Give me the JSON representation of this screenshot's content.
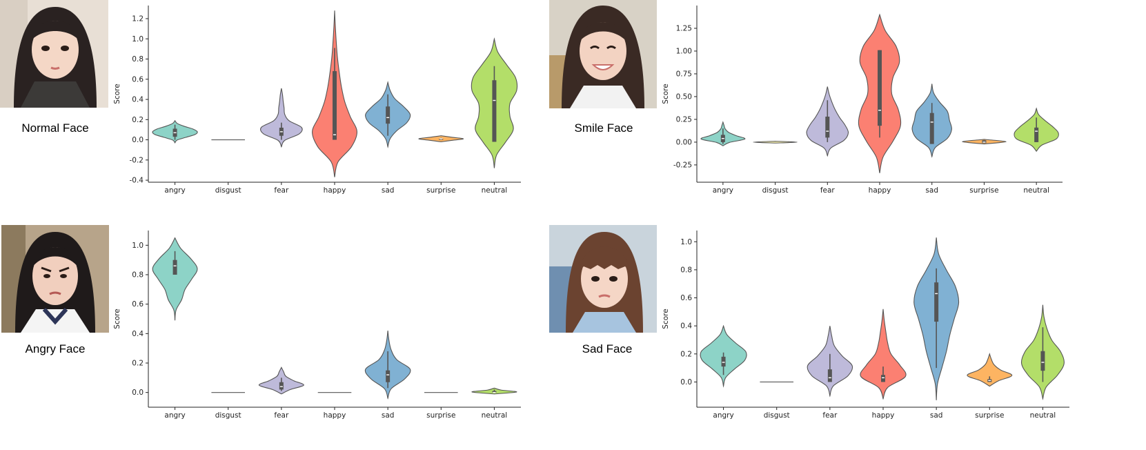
{
  "panels": [
    {
      "caption": "Normal Face"
    },
    {
      "caption": "Smile Face"
    },
    {
      "caption": "Angry Face"
    },
    {
      "caption": "Sad Face"
    }
  ],
  "colors": {
    "angry": "#8dd3c7",
    "disgust": "#fdf6b2",
    "fear": "#bebada",
    "happy": "#fb8072",
    "sad": "#80b1d3",
    "surprise": "#fdb462",
    "neutral": "#b3de69",
    "outline": "#555555",
    "box": "#555555"
  },
  "chart_data": [
    {
      "type": "violin",
      "categories": [
        "angry",
        "disgust",
        "fear",
        "happy",
        "sad",
        "surprise",
        "neutral"
      ],
      "ylabel": "Score",
      "ylim": [
        -0.42,
        1.33
      ],
      "yticks": [
        "-0.4",
        "-0.2",
        "0.0",
        "0.2",
        "0.4",
        "0.6",
        "0.8",
        "1.0",
        "1.2"
      ],
      "ytick_values": [
        -0.4,
        -0.2,
        0.0,
        0.2,
        0.4,
        0.6,
        0.8,
        1.0,
        1.2
      ],
      "violins": [
        {
          "lo": -0.03,
          "hi": 0.19,
          "w": [
            0.1,
            0.5,
            0.9,
            1.0,
            0.8,
            0.4,
            0.1
          ],
          "q1": 0.03,
          "med": 0.07,
          "q3": 0.11,
          "wlo": 0.0,
          "whi": 0.15
        },
        {
          "lo": 0.0,
          "hi": 0.0,
          "w": [
            0
          ],
          "q1": 0,
          "med": 0,
          "q3": 0,
          "wlo": 0,
          "whi": 0
        },
        {
          "lo": -0.07,
          "hi": 0.51,
          "w": [
            0.15,
            0.8,
            0.9,
            0.35,
            0.15,
            0.12,
            0.08,
            0.05
          ],
          "q1": 0.04,
          "med": 0.08,
          "q3": 0.12,
          "wlo": 0.0,
          "whi": 0.17
        },
        {
          "lo": -0.37,
          "hi": 1.28,
          "w": [
            0.15,
            0.75,
            1.0,
            0.7,
            0.45,
            0.3,
            0.2,
            0.12,
            0.07,
            0.03
          ],
          "q1": 0.0,
          "med": 0.05,
          "q3": 0.68,
          "wlo": 0.0,
          "whi": 0.91
        },
        {
          "lo": -0.07,
          "hi": 0.57,
          "w": [
            0.1,
            0.4,
            0.85,
            1.0,
            0.7,
            0.3,
            0.1
          ],
          "q1": 0.16,
          "med": 0.22,
          "q3": 0.33,
          "wlo": 0.04,
          "whi": 0.45
        },
        {
          "lo": -0.02,
          "hi": 0.04,
          "w": [
            0.5,
            1.0,
            0.5
          ],
          "q1": 0.0,
          "med": 0.01,
          "q3": 0.01,
          "wlo": 0.0,
          "whi": 0.02
        },
        {
          "lo": -0.28,
          "hi": 1.0,
          "w": [
            0.1,
            0.5,
            0.85,
            0.7,
            0.7,
            1.0,
            0.95,
            0.55,
            0.15
          ],
          "q1": -0.02,
          "med": 0.39,
          "q3": 0.59,
          "wlo": -0.02,
          "whi": 0.73
        }
      ]
    },
    {
      "type": "violin",
      "categories": [
        "angry",
        "disgust",
        "fear",
        "happy",
        "sad",
        "surprise",
        "neutral"
      ],
      "ylabel": "Score",
      "ylim": [
        -0.44,
        1.5
      ],
      "yticks": [
        "-0.25",
        "0.00",
        "0.25",
        "0.50",
        "0.75",
        "1.00",
        "1.25"
      ],
      "ytick_values": [
        -0.25,
        0.0,
        0.25,
        0.5,
        0.75,
        1.0,
        1.25
      ],
      "violins": [
        {
          "lo": -0.04,
          "hi": 0.22,
          "w": [
            0.3,
            1.0,
            0.6,
            0.25,
            0.1,
            0.05
          ],
          "q1": 0.0,
          "med": 0.04,
          "q3": 0.08,
          "wlo": -0.02,
          "whi": 0.15
        },
        {
          "lo": -0.01,
          "hi": 0.01,
          "w": [
            1.0
          ],
          "q1": 0,
          "med": 0,
          "q3": 0,
          "wlo": 0,
          "whi": 0
        },
        {
          "lo": -0.15,
          "hi": 0.61,
          "w": [
            0.15,
            0.75,
            0.95,
            0.8,
            0.55,
            0.35,
            0.2,
            0.08
          ],
          "q1": 0.05,
          "med": 0.12,
          "q3": 0.28,
          "wlo": 0.0,
          "whi": 0.46
        },
        {
          "lo": -0.34,
          "hi": 1.4,
          "w": [
            0.15,
            0.6,
            0.95,
            0.85,
            0.55,
            0.6,
            0.9,
            0.75,
            0.25
          ],
          "q1": 0.18,
          "med": 0.35,
          "q3": 1.01,
          "wlo": 0.05,
          "whi": 1.01
        },
        {
          "lo": -0.16,
          "hi": 0.64,
          "w": [
            0.15,
            0.7,
            0.9,
            0.8,
            0.7,
            0.35,
            0.08
          ],
          "q1": -0.02,
          "med": 0.22,
          "q3": 0.32,
          "wlo": -0.02,
          "whi": 0.43
        },
        {
          "lo": -0.02,
          "hi": 0.03,
          "w": [
            0.6,
            1.0,
            0.6
          ],
          "q1": -0.01,
          "med": 0.0,
          "q3": 0.02,
          "wlo": -0.01,
          "whi": 0.02
        },
        {
          "lo": -0.1,
          "hi": 0.37,
          "w": [
            0.25,
            0.9,
            1.0,
            0.75,
            0.4,
            0.1
          ],
          "q1": 0.0,
          "med": 0.12,
          "q3": 0.16,
          "wlo": 0.0,
          "whi": 0.27
        }
      ]
    },
    {
      "type": "violin",
      "categories": [
        "angry",
        "disgust",
        "fear",
        "happy",
        "sad",
        "surprise",
        "neutral"
      ],
      "ylabel": "Score",
      "ylim": [
        -0.1,
        1.1
      ],
      "yticks": [
        "0.0",
        "0.2",
        "0.4",
        "0.6",
        "0.8",
        "1.0"
      ],
      "ytick_values": [
        0.0,
        0.2,
        0.4,
        0.6,
        0.8,
        1.0
      ],
      "violins": [
        {
          "lo": 0.49,
          "hi": 1.05,
          "w": [
            0.05,
            0.3,
            0.45,
            0.75,
            1.0,
            0.7,
            0.25
          ],
          "q1": 0.8,
          "med": 0.86,
          "q3": 0.9,
          "wlo": 0.8,
          "whi": 0.96
        },
        {
          "lo": 0.0,
          "hi": 0.0,
          "w": [
            0
          ],
          "q1": 0,
          "med": 0,
          "q3": 0,
          "wlo": 0,
          "whi": 0
        },
        {
          "lo": -0.01,
          "hi": 0.17,
          "w": [
            0.4,
            1.0,
            0.55,
            0.2,
            0.1
          ],
          "q1": 0.02,
          "med": 0.04,
          "q3": 0.07,
          "wlo": 0.01,
          "whi": 0.1
        },
        {
          "lo": 0.0,
          "hi": 0.0,
          "w": [
            0
          ],
          "q1": 0,
          "med": 0,
          "q3": 0,
          "wlo": 0,
          "whi": 0
        },
        {
          "lo": -0.04,
          "hi": 0.42,
          "w": [
            0.15,
            0.75,
            1.0,
            0.4,
            0.15,
            0.05
          ],
          "q1": 0.07,
          "med": 0.12,
          "q3": 0.15,
          "wlo": 0.03,
          "whi": 0.28
        },
        {
          "lo": 0.0,
          "hi": 0.0,
          "w": [
            0
          ],
          "q1": 0,
          "med": 0,
          "q3": 0,
          "wlo": 0,
          "whi": 0
        },
        {
          "lo": -0.01,
          "hi": 0.03,
          "w": [
            1.0,
            0.3
          ],
          "q1": 0.0,
          "med": 0.0,
          "q3": 0.01,
          "wlo": 0.0,
          "whi": 0.02
        }
      ]
    },
    {
      "type": "violin",
      "categories": [
        "angry",
        "disgust",
        "fear",
        "happy",
        "sad",
        "surprise",
        "neutral"
      ],
      "ylabel": "Score",
      "ylim": [
        -0.18,
        1.08
      ],
      "yticks": [
        "0.0",
        "0.2",
        "0.4",
        "0.6",
        "0.8",
        "1.0"
      ],
      "ytick_values": [
        0.0,
        0.2,
        0.4,
        0.6,
        0.8,
        1.0
      ],
      "violins": [
        {
          "lo": -0.03,
          "hi": 0.4,
          "w": [
            0.1,
            0.5,
            0.95,
            1.0,
            0.55,
            0.15
          ],
          "q1": 0.11,
          "med": 0.14,
          "q3": 0.18,
          "wlo": 0.05,
          "whi": 0.21
        },
        {
          "lo": 0.0,
          "hi": 0.0,
          "w": [
            0
          ],
          "q1": 0,
          "med": 0,
          "q3": 0,
          "wlo": 0,
          "whi": 0
        },
        {
          "lo": -0.1,
          "hi": 0.4,
          "w": [
            0.15,
            0.8,
            1.0,
            0.55,
            0.2,
            0.08
          ],
          "q1": 0.0,
          "med": 0.03,
          "q3": 0.09,
          "wlo": 0.0,
          "whi": 0.2
        },
        {
          "lo": -0.12,
          "hi": 0.52,
          "w": [
            0.2,
            1.0,
            0.75,
            0.35,
            0.2,
            0.12,
            0.05
          ],
          "q1": 0.0,
          "med": 0.03,
          "q3": 0.05,
          "wlo": 0.0,
          "whi": 0.11
        },
        {
          "lo": -0.13,
          "hi": 1.03,
          "w": [
            0.05,
            0.25,
            0.45,
            0.6,
            0.8,
            1.0,
            0.85,
            0.45,
            0.1
          ],
          "q1": 0.43,
          "med": 0.63,
          "q3": 0.71,
          "wlo": 0.1,
          "whi": 0.81
        },
        {
          "lo": -0.03,
          "hi": 0.2,
          "w": [
            0.4,
            1.0,
            0.5,
            0.2,
            0.08
          ],
          "q1": 0.0,
          "med": 0.01,
          "q3": 0.02,
          "wlo": 0.0,
          "whi": 0.04
        },
        {
          "lo": -0.12,
          "hi": 0.55,
          "w": [
            0.15,
            0.65,
            0.95,
            0.8,
            0.4,
            0.18,
            0.05
          ],
          "q1": 0.08,
          "med": 0.14,
          "q3": 0.22,
          "wlo": 0.0,
          "whi": 0.39
        }
      ]
    }
  ]
}
